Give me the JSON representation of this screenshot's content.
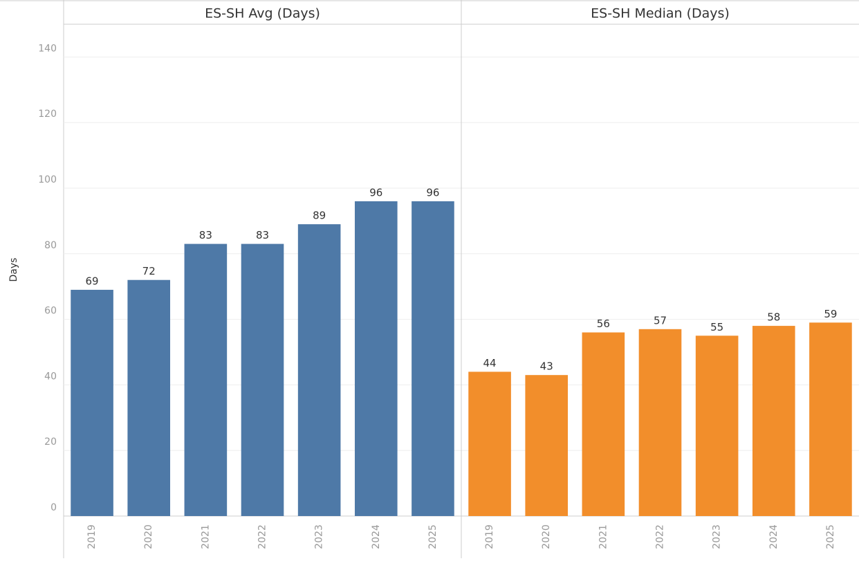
{
  "chart_data": {
    "type": "bar",
    "y_label": "Days",
    "ylim": [
      0,
      150
    ],
    "yticks": [
      0,
      20,
      40,
      60,
      80,
      100,
      120,
      140
    ],
    "grid": true,
    "panels": [
      {
        "title": "ES-SH Avg (Days)",
        "color": "#4e79a7",
        "categories": [
          "2019",
          "2020",
          "2021",
          "2022",
          "2023",
          "2024",
          "2025"
        ],
        "values": [
          69,
          72,
          83,
          83,
          89,
          96,
          96
        ]
      },
      {
        "title": "ES-SH Median (Days)",
        "color": "#f28e2b",
        "categories": [
          "2019",
          "2020",
          "2021",
          "2022",
          "2023",
          "2024",
          "2025"
        ],
        "values": [
          44,
          43,
          56,
          57,
          55,
          58,
          59
        ]
      }
    ]
  }
}
